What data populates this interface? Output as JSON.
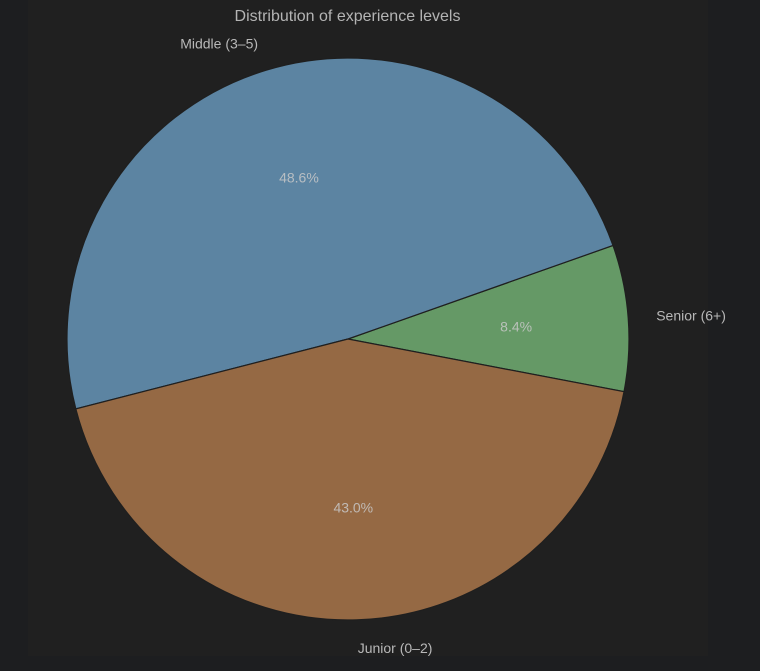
{
  "chart_data": {
    "type": "pie",
    "title": "Distribution of experience levels",
    "slices": [
      {
        "label": "Senior (6+)",
        "value": 8.4,
        "pct_label": "8.4%",
        "color": "#659966"
      },
      {
        "label": "Middle (3–5)",
        "value": 48.6,
        "pct_label": "48.6%",
        "color": "#5c84a2"
      },
      {
        "label": "Junior (0–2)",
        "value": 43.0,
        "pct_label": "43.0%",
        "color": "#956944"
      }
    ],
    "start_angle_deg": -10.8,
    "direction": "counterclockwise",
    "edge_color": "#1f1f1f",
    "background": "#202020"
  }
}
